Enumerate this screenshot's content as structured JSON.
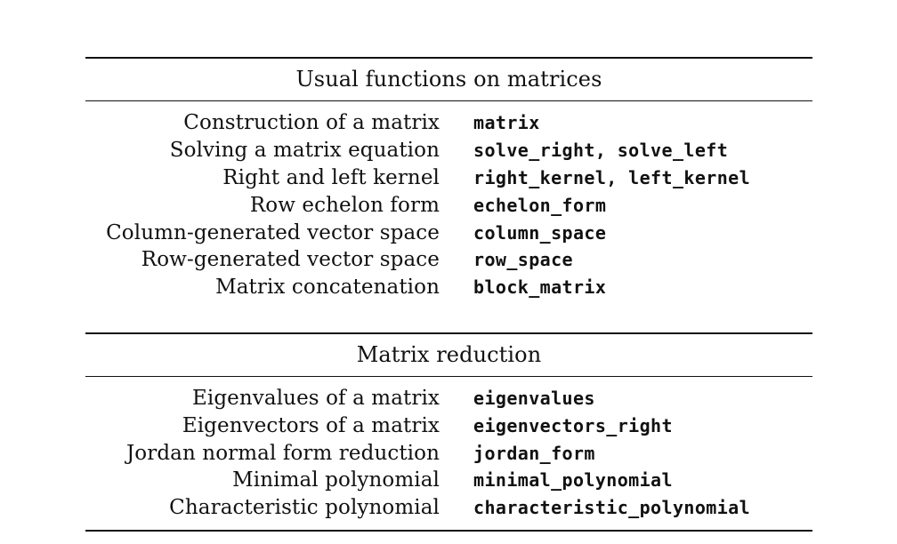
{
  "sections": [
    {
      "title": "Usual functions on matrices",
      "rows": [
        {
          "description": "Construction of a matrix",
          "function": "matrix"
        },
        {
          "description": "Solving a matrix equation",
          "function": "solve_right, solve_left"
        },
        {
          "description": "Right and left kernel",
          "function": "right_kernel, left_kernel"
        },
        {
          "description": "Row echelon form",
          "function": "echelon_form"
        },
        {
          "description": "Column-generated vector space",
          "function": "column_space"
        },
        {
          "description": "Row-generated vector space",
          "function": "row_space"
        },
        {
          "description": "Matrix concatenation",
          "function": "block_matrix"
        }
      ]
    },
    {
      "title": "Matrix reduction",
      "rows": [
        {
          "description": "Eigenvalues of a matrix",
          "function": "eigenvalues"
        },
        {
          "description": "Eigenvectors of a matrix",
          "function": "eigenvectors_right"
        },
        {
          "description": "Jordan normal form reduction",
          "function": "jordan_form"
        },
        {
          "description": "Minimal polynomial",
          "function": "minimal_polynomial"
        },
        {
          "description": "Characteristic polynomial",
          "function": "characteristic_polynomial"
        }
      ]
    }
  ]
}
